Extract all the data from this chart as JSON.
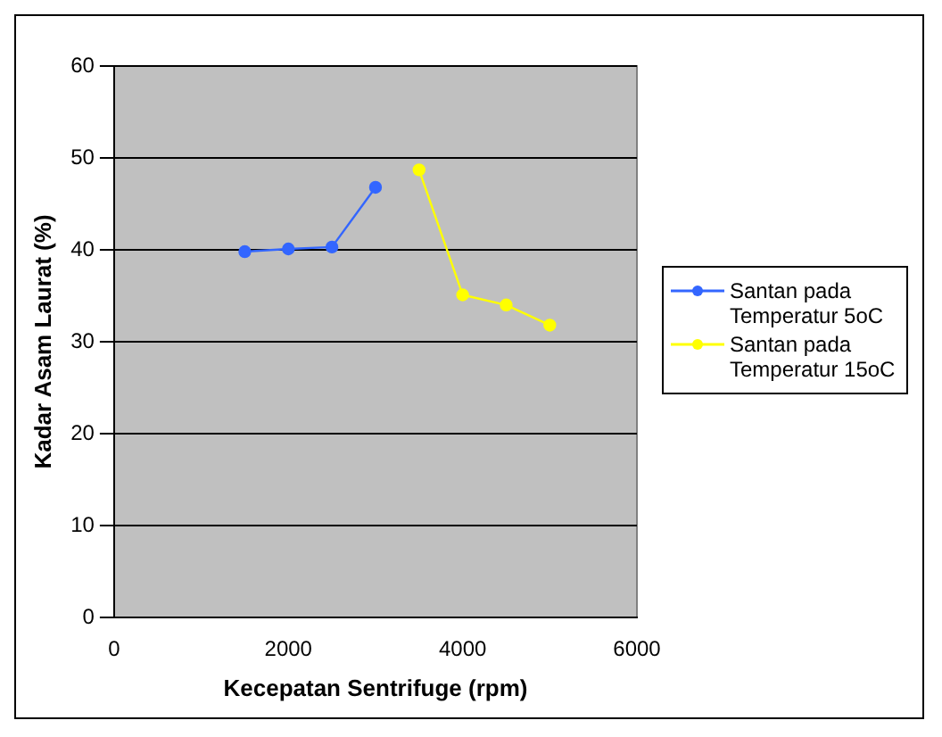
{
  "chart_data": {
    "type": "line",
    "xlabel": "Kecepatan Sentrifuge (rpm)",
    "ylabel": "Kadar Asam Laurat (%)",
    "series": [
      {
        "name": "Santan pada Temperatur 5oC",
        "color": "#3366ff",
        "x": [
          1500,
          2000,
          2500,
          3000
        ],
        "values": [
          39.8,
          40.1,
          40.3,
          46.8
        ]
      },
      {
        "name": "Santan pada Temperatur 15oC",
        "color": "#ffff00",
        "x": [
          3500,
          4000,
          4500,
          5000
        ],
        "values": [
          48.7,
          35.1,
          34.0,
          31.8
        ]
      }
    ],
    "xlim": [
      0,
      6000
    ],
    "xticks": [
      0,
      2000,
      4000,
      6000
    ],
    "ylim": [
      0,
      60
    ],
    "yticks": [
      0,
      10,
      20,
      30,
      40,
      50,
      60
    ],
    "grid": "y",
    "legend": "right",
    "marker": "circle",
    "line_style": "solid"
  }
}
